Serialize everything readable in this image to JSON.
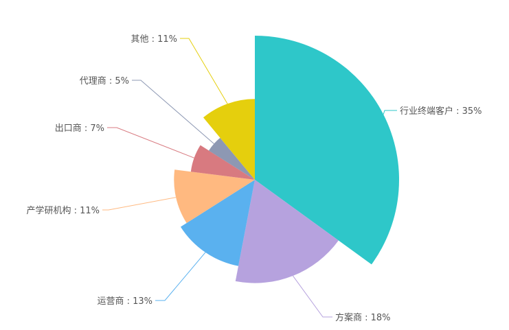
{
  "chart_data": {
    "type": "pie",
    "variant": "rose",
    "title": "",
    "slices": [
      {
        "name": "行业终端客户",
        "value": 35,
        "label": "行业终端客户 : 35%",
        "color": "#2ec7c9"
      },
      {
        "name": "方案商",
        "value": 18,
        "label": "方案商 : 18%",
        "color": "#b6a2de"
      },
      {
        "name": "运营商",
        "value": 13,
        "label": "运营商 : 13%",
        "color": "#5ab1ef"
      },
      {
        "name": "产学研机构",
        "value": 11,
        "label": "产学研机构 : 11%",
        "color": "#ffb980"
      },
      {
        "name": "出口商",
        "value": 7,
        "label": "出口商 : 7%",
        "color": "#d87a80"
      },
      {
        "name": "代理商",
        "value": 5,
        "label": "代理商 : 5%",
        "color": "#8d98b3"
      },
      {
        "name": "其他",
        "value": 11,
        "label": "其他 : 11%",
        "color": "#e5cf0d"
      }
    ]
  }
}
